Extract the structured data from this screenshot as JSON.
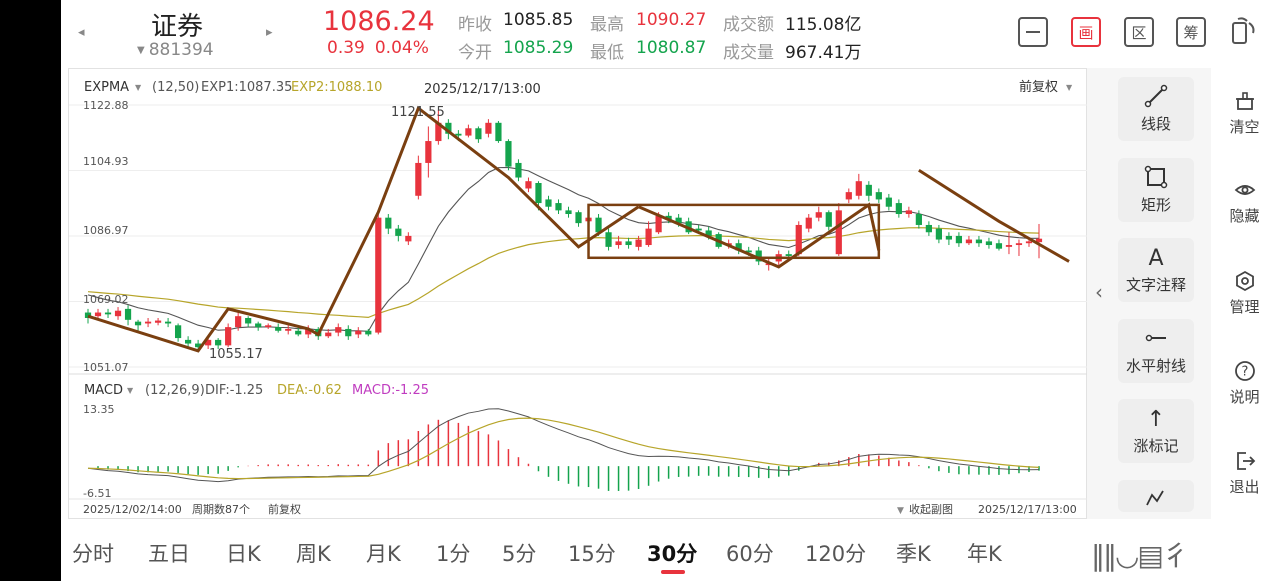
{
  "header": {
    "prev_arrow": "◂",
    "next_arrow": "▸",
    "name": "证券",
    "code": "881394",
    "price": "1086.24",
    "change": "0.39",
    "change_pct": "0.04%",
    "quotes": {
      "prev_close_label": "昨收",
      "prev_close": "1085.85",
      "open_label": "今开",
      "open": "1085.29",
      "high_label": "最高",
      "high": "1090.27",
      "low_label": "最低",
      "low": "1080.87",
      "amount_label": "成交额",
      "amount": "115.08亿",
      "volume_label": "成交量",
      "volume": "967.41万"
    },
    "toolbar": [
      {
        "name": "minus-icon",
        "glyph": "—"
      },
      {
        "name": "draw-icon",
        "glyph": "画"
      },
      {
        "name": "region-icon",
        "glyph": "区"
      },
      {
        "name": "chips-icon",
        "glyph": "筹"
      },
      {
        "name": "switch-icon",
        "glyph": "⇄"
      }
    ]
  },
  "chart": {
    "main_indicator": "EXPMA",
    "main_params": "(12,50)",
    "exp1_label": "EXP1:1087.35",
    "exp2_label": "EXP2:1088.10",
    "cursor_time": "2025/12/17/13:00",
    "adjust": "前复权",
    "y_ticks": [
      "1122.88",
      "1104.93",
      "1086.97",
      "1069.02",
      "1051.07"
    ],
    "annot_high": "1121.55",
    "annot_low": "1055.17",
    "sub_indicator": "MACD",
    "sub_params": "(12,26,9)",
    "dif_label": "DIF:-1.25",
    "dea_label": "DEA:-0.62",
    "macd_label": "MACD:-1.25",
    "macd_top": "13.35",
    "macd_bottom": "-6.51",
    "footer_start": "2025/12/02/14:00",
    "footer_period": "周期数87个",
    "footer_adjust": "前复权",
    "collapse_sub": "收起副图",
    "footer_end": "2025/12/17/13:00",
    "colors": {
      "up": "#e8333d",
      "down": "#14a44d",
      "exp1": "#555555",
      "exp2": "#b7a52a",
      "drawing": "#7a3f10",
      "dea": "#b7a52a",
      "macd": "#c03cc0"
    }
  },
  "chart_data": {
    "type": "candlestick",
    "ylim": [
      1051.07,
      1122.88
    ],
    "candles": [
      {
        "o": 1066,
        "c": 1064.5,
        "h": 1067,
        "l": 1063
      },
      {
        "o": 1065,
        "c": 1066,
        "h": 1067,
        "l": 1064
      },
      {
        "o": 1066,
        "c": 1065.5,
        "h": 1067,
        "l": 1064.5
      },
      {
        "o": 1065,
        "c": 1066.5,
        "h": 1067.5,
        "l": 1064
      },
      {
        "o": 1067,
        "c": 1064,
        "h": 1068,
        "l": 1062.5
      },
      {
        "o": 1063.5,
        "c": 1062.5,
        "h": 1064,
        "l": 1061
      },
      {
        "o": 1063,
        "c": 1063.5,
        "h": 1064.5,
        "l": 1062
      },
      {
        "o": 1063.2,
        "c": 1063.8,
        "h": 1064.5,
        "l": 1062.5
      },
      {
        "o": 1063.5,
        "c": 1063,
        "h": 1064.5,
        "l": 1062
      },
      {
        "o": 1062.5,
        "c": 1059,
        "h": 1063,
        "l": 1058
      },
      {
        "o": 1058.5,
        "c": 1057.5,
        "h": 1059.5,
        "l": 1056
      },
      {
        "o": 1057.5,
        "c": 1056.5,
        "h": 1058.5,
        "l": 1055.17
      },
      {
        "o": 1057,
        "c": 1058.5,
        "h": 1059.5,
        "l": 1056
      },
      {
        "o": 1058.5,
        "c": 1057,
        "h": 1059,
        "l": 1056
      },
      {
        "o": 1057,
        "c": 1062,
        "h": 1063,
        "l": 1056.5
      },
      {
        "o": 1062,
        "c": 1065,
        "h": 1066,
        "l": 1061
      },
      {
        "o": 1064.5,
        "c": 1063,
        "h": 1065,
        "l": 1062
      },
      {
        "o": 1063,
        "c": 1062,
        "h": 1063.5,
        "l": 1061
      },
      {
        "o": 1062,
        "c": 1062.5,
        "h": 1063,
        "l": 1061.5
      },
      {
        "o": 1062,
        "c": 1061,
        "h": 1063,
        "l": 1060.5
      },
      {
        "o": 1061,
        "c": 1061.5,
        "h": 1062.5,
        "l": 1060
      },
      {
        "o": 1061,
        "c": 1060,
        "h": 1062,
        "l": 1059.5
      },
      {
        "o": 1060,
        "c": 1061.5,
        "h": 1062.5,
        "l": 1059
      },
      {
        "o": 1061.5,
        "c": 1059.5,
        "h": 1062,
        "l": 1058.5
      },
      {
        "o": 1059.5,
        "c": 1060.5,
        "h": 1061.5,
        "l": 1059
      },
      {
        "o": 1060.5,
        "c": 1062,
        "h": 1063,
        "l": 1059.5
      },
      {
        "o": 1061.5,
        "c": 1059.5,
        "h": 1062.5,
        "l": 1058.5
      },
      {
        "o": 1060,
        "c": 1061,
        "h": 1062,
        "l": 1059
      },
      {
        "o": 1061,
        "c": 1060,
        "h": 1061.5,
        "l": 1059.5
      },
      {
        "o": 1060.5,
        "c": 1092,
        "h": 1093,
        "l": 1060
      },
      {
        "o": 1092,
        "c": 1089,
        "h": 1093,
        "l": 1087.5
      },
      {
        "o": 1089,
        "c": 1087,
        "h": 1090,
        "l": 1085.5
      },
      {
        "o": 1085.5,
        "c": 1087,
        "h": 1088,
        "l": 1084.5
      },
      {
        "o": 1098,
        "c": 1107,
        "h": 1109,
        "l": 1097
      },
      {
        "o": 1107,
        "c": 1113,
        "h": 1117,
        "l": 1103
      },
      {
        "o": 1113,
        "c": 1118,
        "h": 1121.55,
        "l": 1112
      },
      {
        "o": 1118,
        "c": 1115,
        "h": 1119,
        "l": 1113.5
      },
      {
        "o": 1115,
        "c": 1114.5,
        "h": 1116,
        "l": 1113
      },
      {
        "o": 1114.5,
        "c": 1116.5,
        "h": 1117.5,
        "l": 1114
      },
      {
        "o": 1116.5,
        "c": 1113.5,
        "h": 1117,
        "l": 1112.5
      },
      {
        "o": 1115,
        "c": 1118,
        "h": 1119,
        "l": 1114
      },
      {
        "o": 1118,
        "c": 1113,
        "h": 1118.5,
        "l": 1112.5
      },
      {
        "o": 1113,
        "c": 1106,
        "h": 1113.5,
        "l": 1105
      },
      {
        "o": 1107,
        "c": 1103,
        "h": 1108,
        "l": 1102
      },
      {
        "o": 1100,
        "c": 1102,
        "h": 1103,
        "l": 1099
      },
      {
        "o": 1101.5,
        "c": 1096,
        "h": 1102,
        "l": 1094
      },
      {
        "o": 1097,
        "c": 1095,
        "h": 1098,
        "l": 1094
      },
      {
        "o": 1096,
        "c": 1094,
        "h": 1097,
        "l": 1093
      },
      {
        "o": 1094,
        "c": 1093,
        "h": 1095,
        "l": 1092
      },
      {
        "o": 1093.5,
        "c": 1090.5,
        "h": 1094,
        "l": 1089.5
      },
      {
        "o": 1091,
        "c": 1092,
        "h": 1093,
        "l": 1090
      },
      {
        "o": 1092,
        "c": 1088,
        "h": 1093,
        "l": 1087
      },
      {
        "o": 1088,
        "c": 1084,
        "h": 1089,
        "l": 1083
      },
      {
        "o": 1084.5,
        "c": 1085.5,
        "h": 1087,
        "l": 1083.5
      },
      {
        "o": 1085.5,
        "c": 1084.5,
        "h": 1086.5,
        "l": 1083.5
      },
      {
        "o": 1084,
        "c": 1086,
        "h": 1087,
        "l": 1083
      },
      {
        "o": 1084.5,
        "c": 1089,
        "h": 1091,
        "l": 1084
      },
      {
        "o": 1088,
        "c": 1092.5,
        "h": 1093.5,
        "l": 1087.5
      },
      {
        "o": 1092.5,
        "c": 1091.5,
        "h": 1093.5,
        "l": 1090.5
      },
      {
        "o": 1092,
        "c": 1090.5,
        "h": 1093,
        "l": 1089.5
      },
      {
        "o": 1091,
        "c": 1088,
        "h": 1092,
        "l": 1087.5
      },
      {
        "o": 1089,
        "c": 1088.5,
        "h": 1090,
        "l": 1087.5
      },
      {
        "o": 1088.5,
        "c": 1087,
        "h": 1089.5,
        "l": 1086
      },
      {
        "o": 1087.5,
        "c": 1084,
        "h": 1088,
        "l": 1083.5
      },
      {
        "o": 1084.5,
        "c": 1085,
        "h": 1086,
        "l": 1083.5
      },
      {
        "o": 1085,
        "c": 1083,
        "h": 1086,
        "l": 1082
      },
      {
        "o": 1083,
        "c": 1082.5,
        "h": 1084,
        "l": 1081.5
      },
      {
        "o": 1083,
        "c": 1080,
        "h": 1084,
        "l": 1079
      },
      {
        "o": 1079,
        "c": 1079.5,
        "h": 1081,
        "l": 1077.5
      },
      {
        "o": 1080,
        "c": 1082,
        "h": 1083,
        "l": 1079
      },
      {
        "o": 1082,
        "c": 1081.5,
        "h": 1083,
        "l": 1080.5
      },
      {
        "o": 1082,
        "c": 1090,
        "h": 1091,
        "l": 1081.5
      },
      {
        "o": 1089,
        "c": 1092,
        "h": 1093,
        "l": 1088
      },
      {
        "o": 1092,
        "c": 1093.5,
        "h": 1095,
        "l": 1091
      },
      {
        "o": 1093.5,
        "c": 1089.5,
        "h": 1094,
        "l": 1088.5
      },
      {
        "o": 1082,
        "c": 1094,
        "h": 1096,
        "l": 1081.5
      },
      {
        "o": 1097,
        "c": 1099,
        "h": 1100,
        "l": 1096
      },
      {
        "o": 1098,
        "c": 1102,
        "h": 1104,
        "l": 1097
      },
      {
        "o": 1101,
        "c": 1098,
        "h": 1102,
        "l": 1096.5
      },
      {
        "o": 1099,
        "c": 1097,
        "h": 1100,
        "l": 1096
      },
      {
        "o": 1097.5,
        "c": 1095,
        "h": 1098.5,
        "l": 1094
      },
      {
        "o": 1096,
        "c": 1093,
        "h": 1097,
        "l": 1092
      },
      {
        "o": 1093,
        "c": 1094,
        "h": 1095,
        "l": 1092
      },
      {
        "o": 1093,
        "c": 1090,
        "h": 1094,
        "l": 1089
      }
    ],
    "tail_candles": [
      {
        "o": 1090,
        "c": 1088,
        "h": 1091,
        "l": 1087
      },
      {
        "o": 1089,
        "c": 1086,
        "h": 1090,
        "l": 1085
      },
      {
        "o": 1087,
        "c": 1086,
        "h": 1088,
        "l": 1084.5
      },
      {
        "o": 1087,
        "c": 1085,
        "h": 1088,
        "l": 1084
      },
      {
        "o": 1085,
        "c": 1086,
        "h": 1087,
        "l": 1084.5
      },
      {
        "o": 1086,
        "c": 1085,
        "h": 1087,
        "l": 1084
      },
      {
        "o": 1085.5,
        "c": 1084.5,
        "h": 1086.5,
        "l": 1083.5
      },
      {
        "o": 1085,
        "c": 1083.5,
        "h": 1086,
        "l": 1083
      },
      {
        "o": 1084,
        "c": 1084.5,
        "h": 1088,
        "l": 1082
      },
      {
        "o": 1084.5,
        "c": 1085,
        "h": 1086,
        "l": 1081.5
      },
      {
        "o": 1085,
        "c": 1085.5,
        "h": 1086.5,
        "l": 1084
      },
      {
        "o": 1085.29,
        "c": 1086.24,
        "h": 1090.27,
        "l": 1080.87
      }
    ]
  }
}
